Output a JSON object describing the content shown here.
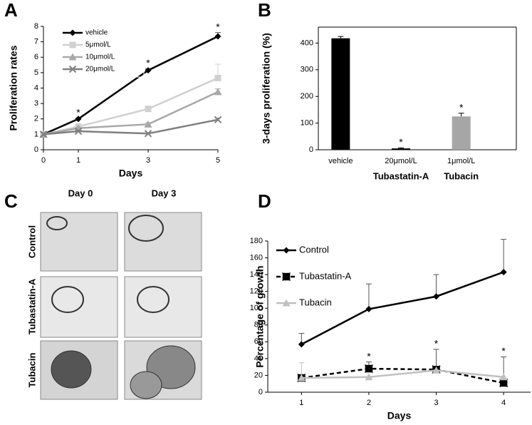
{
  "chart_data": [
    {
      "type": "line",
      "panel_label": "A",
      "x_label": "Days",
      "y_label": "Proliferation rates",
      "x": [
        0,
        1,
        3,
        5
      ],
      "xlim": [
        0,
        5
      ],
      "xticks": [
        0,
        1,
        3,
        5
      ],
      "ylim": [
        0,
        8
      ],
      "yticks": [
        0,
        1,
        2,
        3,
        4,
        5,
        6,
        7,
        8
      ],
      "legend": "upper left",
      "series": [
        {
          "name": "vehicle",
          "color": "#000000",
          "marker": "diamond",
          "values": [
            1,
            2,
            5.15,
            7.35
          ],
          "errors": [
            0,
            0.05,
            0.1,
            0.25
          ],
          "annotations": [
            null,
            "*",
            "*",
            "*"
          ]
        },
        {
          "name": "5μmol/L",
          "color": "#d0d0d0",
          "marker": "square",
          "values": [
            1,
            1.5,
            2.65,
            4.65
          ],
          "errors": [
            0,
            0.05,
            0.1,
            0.9
          ]
        },
        {
          "name": "10μmol/L",
          "color": "#a8a8a8",
          "marker": "triangle",
          "values": [
            1,
            1.4,
            1.65,
            3.75
          ],
          "errors": [
            0,
            0.05,
            0.1,
            0.2
          ]
        },
        {
          "name": "20μmol/L",
          "color": "#808080",
          "marker": "x",
          "values": [
            1,
            1.2,
            1.05,
            1.95
          ],
          "errors": [
            0,
            0.05,
            0.05,
            0.1
          ]
        }
      ]
    },
    {
      "type": "bar",
      "panel_label": "B",
      "y_label": "3-days proliferation (%)",
      "categories": [
        "vehicle",
        "20μmol/L",
        "1μmol/L"
      ],
      "group_labels": [
        null,
        "Tubastatin-A",
        "Tubacin"
      ],
      "values": [
        418,
        5,
        125
      ],
      "errors": [
        7,
        2,
        12
      ],
      "colors": [
        "#000000",
        "#000000",
        "#a6a6a6"
      ],
      "annotations": [
        null,
        "*",
        "*"
      ],
      "ylim": [
        0,
        460
      ],
      "yticks": [
        0,
        100,
        200,
        300,
        400
      ]
    },
    {
      "type": "line",
      "panel_label": "D",
      "x_label": "Days",
      "y_label": "Percentage of growth",
      "x": [
        1,
        2,
        3,
        4
      ],
      "xlim": [
        0.5,
        4.4
      ],
      "xticks": [
        1,
        2,
        3,
        4
      ],
      "ylim": [
        0,
        180
      ],
      "yticks": [
        0,
        20,
        40,
        60,
        80,
        100,
        120,
        140,
        160,
        180
      ],
      "legend": "inline",
      "series": [
        {
          "name": "Control",
          "color": "#000000",
          "marker": "diamond",
          "line_style": "solid",
          "values": [
            57,
            99,
            114,
            143
          ],
          "errors": [
            13,
            30,
            26,
            39
          ]
        },
        {
          "name": "Tubastatin-A",
          "color": "#000000",
          "marker": "x-square",
          "line_style": "dashed",
          "values": [
            17,
            28,
            27,
            11
          ],
          "errors": [
            0,
            8,
            24,
            31
          ],
          "annotations": [
            null,
            "*",
            "*",
            "*"
          ]
        },
        {
          "name": "Tubacin",
          "color": "#c0c0c0",
          "marker": "triangle",
          "line_style": "solid",
          "values": [
            17,
            18,
            26,
            18
          ],
          "errors": [
            18,
            0,
            0,
            0
          ]
        }
      ]
    }
  ],
  "panel_c": {
    "panel_label": "C",
    "columns": [
      "Day 0",
      "Day 3"
    ],
    "rows": [
      "Control",
      "Tubastatin-A",
      "Tubacin"
    ]
  }
}
